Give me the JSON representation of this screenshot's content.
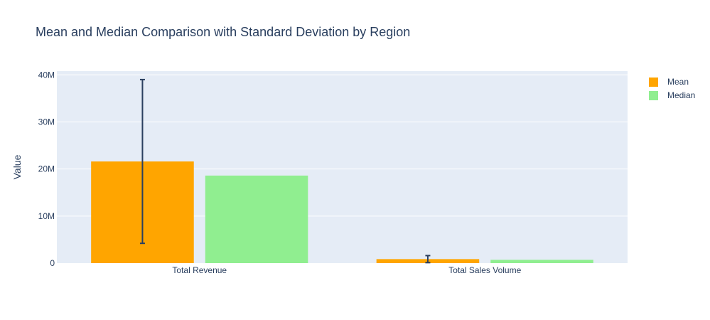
{
  "chart_data": {
    "type": "bar",
    "title": "Mean and Median Comparison with Standard Deviation by Region",
    "xlabel": "",
    "ylabel": "Value",
    "categories": [
      "Total Revenue",
      "Total Sales Volume"
    ],
    "series": [
      {
        "name": "Mean",
        "color": "#FFA500",
        "values": [
          21600000,
          850000
        ],
        "error": [
          17400000,
          750000
        ]
      },
      {
        "name": "Median",
        "color": "#90EE90",
        "values": [
          18600000,
          700000
        ]
      }
    ],
    "ylim": [
      0,
      40800000
    ],
    "yticks": [
      0,
      10000000,
      20000000,
      30000000,
      40000000
    ],
    "ytick_labels": [
      "0",
      "10M",
      "20M",
      "30M",
      "40M"
    ],
    "grid": true,
    "legend": "top-right",
    "plot_background": "#E5ECF6",
    "error_bar_color": "#2a3f5f"
  }
}
